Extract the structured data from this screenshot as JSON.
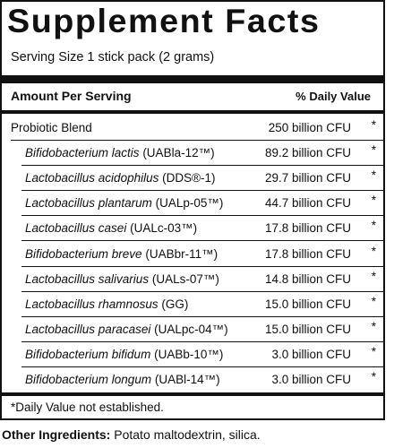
{
  "panel": {
    "title": "Supplement Facts",
    "serving_size": "Serving Size 1 stick pack (2 grams)",
    "header_left": "Amount Per Serving",
    "header_right": "% Daily Value",
    "blend": {
      "name": "Probiotic Blend",
      "amount": "250 billion CFU",
      "dv": "*"
    },
    "strains": [
      {
        "species": "Bifidobacterium lactis",
        "strain": " (UABla-12™)",
        "amount": "89.2 billion CFU",
        "dv": "*"
      },
      {
        "species": "Lactobacillus acidophilus",
        "strain": " (DDS®-1)",
        "amount": "29.7 billion CFU",
        "dv": "*"
      },
      {
        "species": "Lactobacillus plantarum",
        "strain": " (UALp-05™)",
        "amount": "44.7 billion CFU",
        "dv": "*"
      },
      {
        "species": "Lactobacillus casei",
        "strain": " (UALc-03™)",
        "amount": "17.8 billion CFU",
        "dv": "*"
      },
      {
        "species": "Bifidobacterium breve",
        "strain": " (UABbr-11™)",
        "amount": "17.8 billion CFU",
        "dv": "*"
      },
      {
        "species": "Lactobacillus salivarius",
        "strain": " (UALs-07™)",
        "amount": "14.8 billion CFU",
        "dv": "*"
      },
      {
        "species": "Lactobacillus rhamnosus",
        "strain": " (GG)",
        "amount": "15.0 billion CFU",
        "dv": "*"
      },
      {
        "species": "Lactobacillus paracasei",
        "strain": " (UALpc-04™)",
        "amount": "15.0 billion CFU",
        "dv": "*"
      },
      {
        "species": "Bifidobacterium bifidum",
        "strain": " (UABb-10™)",
        "amount": "3.0 billion CFU",
        "dv": "*"
      },
      {
        "species": "Bifidobacterium longum",
        "strain": " (UABl-14™)",
        "amount": "3.0 billion CFU",
        "dv": "*"
      }
    ],
    "footnote": "*Daily Value not established."
  },
  "other_ingredients": {
    "label": "Other Ingredients:",
    "text": " Potato maltodextrin, silica."
  }
}
